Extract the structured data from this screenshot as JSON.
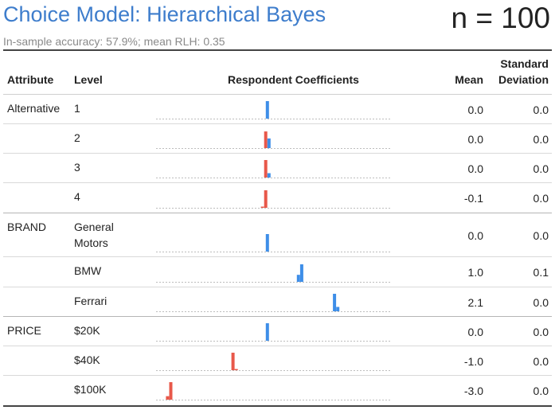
{
  "header": {
    "title": "Choice Model: Hierarchical Bayes",
    "n_label": "n = 100",
    "subtitle": "In-sample accuracy: 57.9%; mean RLH: 0.35"
  },
  "columns": {
    "attribute": "Attribute",
    "level": "Level",
    "coefficients": "Respondent Coefficients",
    "mean": "Mean",
    "sd_line1": "Standard",
    "sd_line2": "Deviation"
  },
  "colors": {
    "positive": "#3e8ee8",
    "negative": "#e8584a",
    "title": "#3e7dcc"
  },
  "chart_data": {
    "type": "table",
    "x_range": [
      -3.4,
      3.8
    ],
    "rows": [
      {
        "attribute": "Alternative",
        "level": "1",
        "mean": 0.0,
        "sd": 0.0,
        "mean_label": "0.0",
        "sd_label": "0.0",
        "hist": [
          {
            "x": 0.0,
            "h": 1.0
          }
        ]
      },
      {
        "attribute": "",
        "level": "2",
        "mean": 0.0,
        "sd": 0.0,
        "mean_label": "0.0",
        "sd_label": "0.0",
        "hist": [
          {
            "x": -0.05,
            "h": 0.95
          },
          {
            "x": 0.05,
            "h": 0.55
          }
        ]
      },
      {
        "attribute": "",
        "level": "3",
        "mean": 0.0,
        "sd": 0.0,
        "mean_label": "0.0",
        "sd_label": "0.0",
        "hist": [
          {
            "x": -0.05,
            "h": 1.0
          },
          {
            "x": 0.05,
            "h": 0.25
          }
        ]
      },
      {
        "attribute": "",
        "level": "4",
        "mean": -0.1,
        "sd": 0.0,
        "mean_label": "-0.1",
        "sd_label": "0.0",
        "hist": [
          {
            "x": -0.15,
            "h": 0.05
          },
          {
            "x": -0.05,
            "h": 1.0
          }
        ]
      },
      {
        "attribute": "BRAND",
        "level": "General Motors",
        "mean": 0.0,
        "sd": 0.0,
        "mean_label": "0.0",
        "sd_label": "0.0",
        "hist": [
          {
            "x": 0.0,
            "h": 1.0
          }
        ]
      },
      {
        "attribute": "",
        "level": "BMW",
        "mean": 1.0,
        "sd": 0.1,
        "mean_label": "1.0",
        "sd_label": "0.1",
        "hist": [
          {
            "x": 0.95,
            "h": 0.4
          },
          {
            "x": 1.05,
            "h": 1.0
          }
        ]
      },
      {
        "attribute": "",
        "level": "Ferrari",
        "mean": 2.1,
        "sd": 0.0,
        "mean_label": "2.1",
        "sd_label": "0.0",
        "hist": [
          {
            "x": 2.05,
            "h": 1.0
          },
          {
            "x": 2.15,
            "h": 0.25
          }
        ]
      },
      {
        "attribute": "PRICE",
        "level": "$20K",
        "mean": 0.0,
        "sd": 0.0,
        "mean_label": "0.0",
        "sd_label": "0.0",
        "hist": [
          {
            "x": 0.0,
            "h": 1.0
          }
        ]
      },
      {
        "attribute": "",
        "level": "$40K",
        "mean": -1.0,
        "sd": 0.0,
        "mean_label": "-1.0",
        "sd_label": "0.0",
        "hist": [
          {
            "x": -1.05,
            "h": 1.0
          },
          {
            "x": -0.95,
            "h": 0.05
          }
        ]
      },
      {
        "attribute": "",
        "level": "$100K",
        "mean": -3.0,
        "sd": 0.0,
        "mean_label": "-3.0",
        "sd_label": "0.0",
        "hist": [
          {
            "x": -3.05,
            "h": 0.2
          },
          {
            "x": -2.95,
            "h": 1.0
          }
        ]
      }
    ]
  }
}
